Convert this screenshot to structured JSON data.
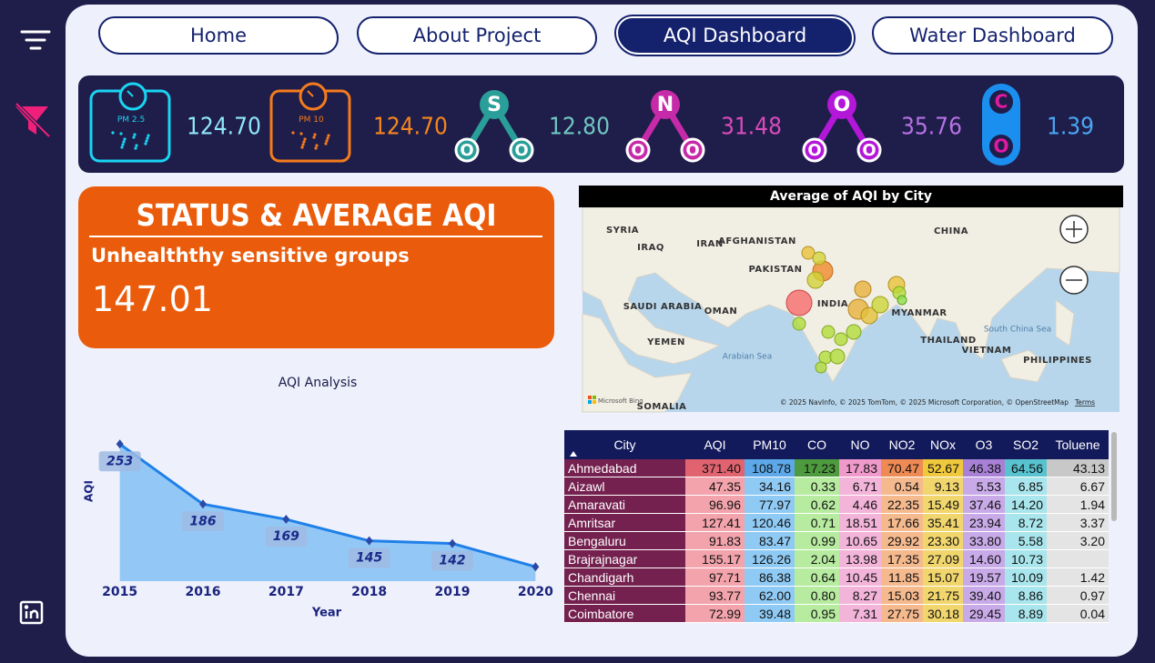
{
  "nav": {
    "tabs": [
      "Home",
      "About Project",
      "AQI Dashboard",
      "Water Dashboard"
    ],
    "active": 2
  },
  "kpis": [
    {
      "icon_label": "PM 2.5",
      "value": "124.70",
      "color": "#19d4f2",
      "value_color": "#8fe6f7"
    },
    {
      "icon_label": "PM 10",
      "value": "124.70",
      "color": "#f47c1c",
      "value_color": "#f4861e"
    },
    {
      "atoms": [
        "S",
        "O",
        "O"
      ],
      "value": "12.80",
      "color": "#2a9e98",
      "value_color": "#6fc6c0"
    },
    {
      "atoms": [
        "N",
        "O",
        "O"
      ],
      "value": "31.48",
      "color": "#c62aa8",
      "value_color": "#d84bb9"
    },
    {
      "atoms": [
        "O",
        "O",
        "O"
      ],
      "value": "35.76",
      "color": "#b317d8",
      "value_color": "#b572e3"
    },
    {
      "atoms": [
        "C",
        "O"
      ],
      "value": "1.39",
      "color": "#1a8ff0",
      "value_color": "#4aa6f3"
    }
  ],
  "status": {
    "title": "STATUS & AVERAGE AQI",
    "category": "Unhealththy sensitive groups",
    "value": "147.01"
  },
  "map": {
    "title": "Average of AQI by City",
    "labels": [
      "SYRIA",
      "IRAQ",
      "IRAN",
      "AFGHANISTAN",
      "PAKISTAN",
      "CHINA",
      "INDIA",
      "SAUDI ARABIA",
      "OMAN",
      "YEMEN",
      "Arabian Sea",
      "MYANMAR",
      "THAILAND",
      "VIETNAM",
      "South China Sea",
      "PHILIPPINES",
      "SOMALIA"
    ],
    "provider": "Microsoft Bing",
    "attribution": "© 2025 NavInfo, © 2025 TomTom, © 2025 Microsoft Corporation, © OpenStreetMap",
    "terms": "Terms"
  },
  "chart_data": {
    "type": "line",
    "title": "AQI Analysis",
    "x_label": "Year",
    "y_label": "AQI",
    "categories": [
      "2015",
      "2016",
      "2017",
      "2018",
      "2019",
      "2020"
    ],
    "values": [
      253,
      186,
      169,
      145,
      142,
      116
    ],
    "value_labels": [
      "253",
      "186",
      "169",
      "145",
      "142",
      null
    ],
    "color": "#1f80e8",
    "area_color": "#93c8f6",
    "ylim": [
      100,
      260
    ]
  },
  "table": {
    "columns": [
      "City",
      "AQI",
      "PM10",
      "CO",
      "NO",
      "NO2",
      "NOx",
      "O3",
      "SO2",
      "Toluene"
    ],
    "rows": [
      [
        "Ahmedabad",
        "371.40",
        "108.78",
        "17.23",
        "17.83",
        "70.47",
        "52.67",
        "46.38",
        "64.56",
        "43.13"
      ],
      [
        "Aizawl",
        "47.35",
        "34.16",
        "0.33",
        "6.71",
        "0.54",
        "9.13",
        "5.53",
        "6.85",
        "6.67"
      ],
      [
        "Amaravati",
        "96.96",
        "77.97",
        "0.62",
        "4.46",
        "22.35",
        "15.49",
        "37.46",
        "14.20",
        "1.94"
      ],
      [
        "Amritsar",
        "127.41",
        "120.46",
        "0.71",
        "18.51",
        "17.66",
        "35.41",
        "23.94",
        "8.72",
        "3.37"
      ],
      [
        "Bengaluru",
        "91.83",
        "83.47",
        "0.99",
        "10.65",
        "29.92",
        "23.30",
        "33.80",
        "5.58",
        "3.20"
      ],
      [
        "Brajrajnagar",
        "155.17",
        "126.26",
        "2.04",
        "13.98",
        "17.35",
        "27.09",
        "14.60",
        "10.73",
        null
      ],
      [
        "Chandigarh",
        "97.71",
        "86.38",
        "0.64",
        "10.45",
        "11.85",
        "15.07",
        "19.57",
        "10.09",
        "1.42"
      ],
      [
        "Chennai",
        "93.77",
        "62.00",
        "0.80",
        "8.27",
        "15.03",
        "21.75",
        "39.40",
        "8.86",
        "0.97"
      ],
      [
        "Coimbatore",
        "72.99",
        "39.48",
        "0.95",
        "7.31",
        "27.75",
        "30.18",
        "29.45",
        "8.89",
        "0.04"
      ]
    ]
  }
}
